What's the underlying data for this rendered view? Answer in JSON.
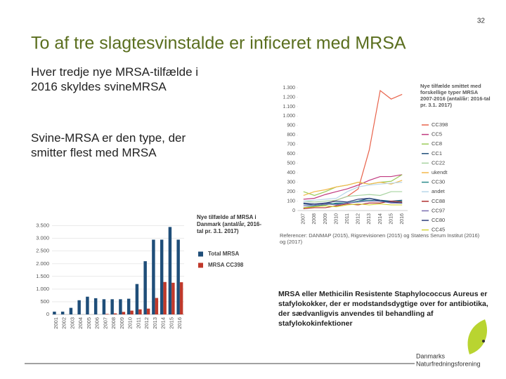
{
  "slide_number": "32",
  "title": "To af tre slagtesvinstalde er inficeret med MRSA",
  "bullets": [
    "Hver tredje nye MRSA-tilfælde i 2016 skyldes svineMRSA",
    "Svine-MRSA er den type, der smitter flest med MRSA"
  ],
  "caption": "MRSA eller Methicilin Resistente Staphylococcus Aureus er stafylokokker, der er modstandsdygtige over for antibiotika, der sædvanligvis anvendes til behandling af stafylokokinfektioner",
  "logo": [
    "Danmarks",
    "Naturfredningsforening"
  ],
  "chart_data": [
    {
      "type": "line",
      "title": "Nye tilfælde smittet med forskellige typer MRSA 2007-2016 (antal/år: 2016-tal pr. 3.1. 2017)",
      "reference": "Referencer: DANMAP (2015), Rigsrevisionen (2015) og Statens Serum Institut (2016) og (2017)",
      "categories": [
        "2007",
        "2008",
        "2009",
        "2010",
        "2011",
        "2012",
        "2013",
        "2014",
        "2015",
        "2016"
      ],
      "ylim": [
        0,
        1300
      ],
      "yticks": [
        0,
        100,
        200,
        300,
        400,
        500,
        600,
        700,
        800,
        900,
        {
          "value": 1000,
          "label": "1.000"
        },
        {
          "value": 1100,
          "label": "1.100"
        },
        {
          "value": 1200,
          "label": "1.200"
        },
        {
          "value": 1300,
          "label": "1.300"
        }
      ],
      "series": [
        {
          "name": "CC398",
          "color": "#e8624a",
          "values": [
            20,
            40,
            70,
            110,
            150,
            230,
            640,
            1270,
            1180,
            1230
          ]
        },
        {
          "name": "CC5",
          "color": "#c0397f",
          "values": [
            120,
            130,
            170,
            200,
            230,
            270,
            320,
            360,
            360,
            380
          ]
        },
        {
          "name": "CC8",
          "color": "#9ccc5a",
          "values": [
            200,
            160,
            200,
            250,
            270,
            300,
            280,
            300,
            310,
            380
          ]
        },
        {
          "name": "CC1",
          "color": "#1f4e79",
          "values": [
            70,
            60,
            80,
            70,
            80,
            100,
            130,
            110,
            100,
            110
          ]
        },
        {
          "name": "CC22",
          "color": "#a7d3a0",
          "values": [
            100,
            90,
            100,
            110,
            150,
            160,
            170,
            160,
            200,
            200
          ]
        },
        {
          "name": "ukendt",
          "color": "#f2b84b",
          "values": [
            160,
            200,
            220,
            250,
            270,
            300,
            280,
            300,
            280,
            320
          ]
        },
        {
          "name": "CC30",
          "color": "#2a8c8c",
          "values": [
            30,
            50,
            60,
            80,
            80,
            100,
            110,
            100,
            100,
            100
          ]
        },
        {
          "name": "andet",
          "color": "#b9d7ea",
          "values": [
            100,
            110,
            120,
            130,
            200,
            250,
            270,
            280,
            290,
            300
          ]
        },
        {
          "name": "CC88",
          "color": "#b03030",
          "values": [
            20,
            30,
            30,
            50,
            70,
            60,
            80,
            80,
            100,
            90
          ]
        },
        {
          "name": "CC97",
          "color": "#7b6fb0",
          "values": [
            50,
            60,
            70,
            60,
            80,
            90,
            100,
            100,
            80,
            80
          ]
        },
        {
          "name": "CC80",
          "color": "#2c3e7a",
          "values": [
            80,
            70,
            80,
            100,
            90,
            120,
            130,
            100,
            90,
            80
          ]
        },
        {
          "name": "CC45",
          "color": "#d6d63a",
          "values": [
            30,
            40,
            50,
            40,
            60,
            70,
            60,
            70,
            60,
            60
          ]
        }
      ]
    },
    {
      "type": "bar",
      "title": "Nye tilfælde af MRSA i Danmark (antal/år, 2016-tal pr. 3.1. 2017)",
      "categories": [
        "2001",
        "2002",
        "2003",
        "2004",
        "2005",
        "2006",
        "2007",
        "2008",
        "2009",
        "2010",
        "2011",
        "2012",
        "2013",
        "2014",
        "2015",
        "2016"
      ],
      "ylim": [
        0,
        3600
      ],
      "yticks": [
        0,
        500,
        {
          "value": 1000,
          "label": "1.000"
        },
        {
          "value": 1500,
          "label": "1.500"
        },
        {
          "value": 2000,
          "label": "2.000"
        },
        {
          "value": 2500,
          "label": "2.500"
        },
        {
          "value": 3000,
          "label": "3.000"
        },
        {
          "value": 3500,
          "label": "3.500"
        }
      ],
      "grid": true,
      "series": [
        {
          "name": "Total MRSA",
          "color": "#1f4e79",
          "values": [
            110,
            110,
            260,
            560,
            700,
            640,
            600,
            600,
            600,
            620,
            1200,
            2100,
            2950,
            2950,
            3450,
            2950
          ]
        },
        {
          "name": "MRSA CC398",
          "color": "#c0392b",
          "values": [
            0,
            0,
            0,
            0,
            0,
            0,
            20,
            40,
            100,
            150,
            200,
            230,
            650,
            1280,
            1250,
            1270
          ]
        }
      ]
    }
  ]
}
